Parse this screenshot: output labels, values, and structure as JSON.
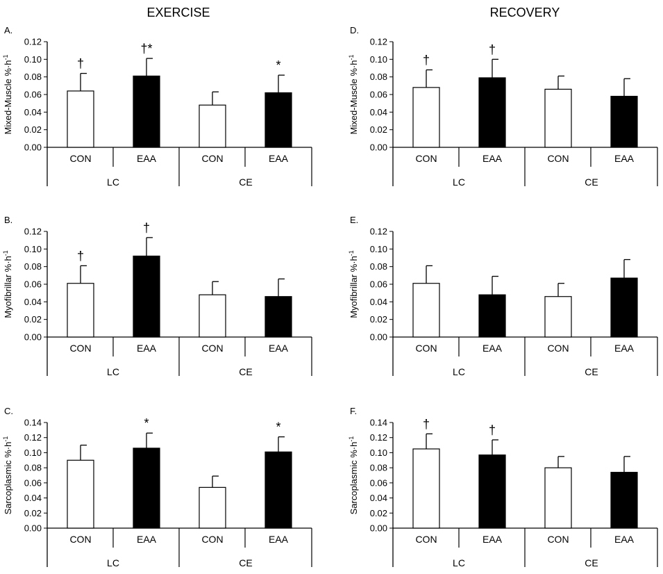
{
  "column_titles": [
    "EXERCISE",
    "RECOVERY"
  ],
  "colors": {
    "con_fill": "#ffffff",
    "eaa_fill": "#000000",
    "stroke": "#000000"
  },
  "chart_data": [
    {
      "panel": "A.",
      "column": "EXERCISE",
      "type": "bar",
      "ylabel": "Mixed-Muscle %·h",
      "ylabel_sup": "-1",
      "ylim": [
        0,
        0.12
      ],
      "yticks": [
        "0.00",
        "0.02",
        "0.04",
        "0.06",
        "0.08",
        "0.10",
        "0.12"
      ],
      "categories": [
        "CON",
        "EAA",
        "CON",
        "EAA"
      ],
      "groups": [
        "LC",
        "CE"
      ],
      "values": [
        0.064,
        0.081,
        0.048,
        0.062
      ],
      "errors": [
        0.02,
        0.02,
        0.015,
        0.02
      ],
      "markers": [
        "†",
        "†*",
        "",
        "*"
      ]
    },
    {
      "panel": "D.",
      "column": "RECOVERY",
      "type": "bar",
      "ylabel": "Mixed-Muscle %·h",
      "ylabel_sup": "-1",
      "ylim": [
        0,
        0.12
      ],
      "yticks": [
        "0.00",
        "0.02",
        "0.04",
        "0.06",
        "0.08",
        "0.10",
        "0.12"
      ],
      "categories": [
        "CON",
        "EAA",
        "CON",
        "EAA"
      ],
      "groups": [
        "LC",
        "CE"
      ],
      "values": [
        0.068,
        0.079,
        0.066,
        0.058
      ],
      "errors": [
        0.02,
        0.021,
        0.015,
        0.02
      ],
      "markers": [
        "†",
        "†",
        "",
        ""
      ]
    },
    {
      "panel": "B.",
      "column": "EXERCISE",
      "type": "bar",
      "ylabel": "Myofibrillar %·h",
      "ylabel_sup": "-1",
      "ylim": [
        0,
        0.12
      ],
      "yticks": [
        "0.00",
        "0.02",
        "0.04",
        "0.06",
        "0.08",
        "0.10",
        "0.12"
      ],
      "categories": [
        "CON",
        "EAA",
        "CON",
        "EAA"
      ],
      "groups": [
        "LC",
        "CE"
      ],
      "values": [
        0.061,
        0.092,
        0.048,
        0.046
      ],
      "errors": [
        0.02,
        0.021,
        0.015,
        0.02
      ],
      "markers": [
        "†",
        "†",
        "",
        ""
      ]
    },
    {
      "panel": "E.",
      "column": "RECOVERY",
      "type": "bar",
      "ylabel": "Myofibrillar %·h",
      "ylabel_sup": "-1",
      "ylim": [
        0,
        0.12
      ],
      "yticks": [
        "0.00",
        "0.02",
        "0.04",
        "0.06",
        "0.08",
        "0.10",
        "0.12"
      ],
      "categories": [
        "CON",
        "EAA",
        "CON",
        "EAA"
      ],
      "groups": [
        "LC",
        "CE"
      ],
      "values": [
        0.061,
        0.048,
        0.046,
        0.067
      ],
      "errors": [
        0.02,
        0.021,
        0.015,
        0.021
      ],
      "markers": [
        "",
        "",
        "",
        ""
      ]
    },
    {
      "panel": "C.",
      "column": "EXERCISE",
      "type": "bar",
      "ylabel": "Sarcoplasmic %·h",
      "ylabel_sup": "-1",
      "ylim": [
        0,
        0.14
      ],
      "yticks": [
        "0.00",
        "0.02",
        "0.04",
        "0.06",
        "0.08",
        "0.10",
        "0.12",
        "0.14"
      ],
      "categories": [
        "CON",
        "EAA",
        "CON",
        "EAA"
      ],
      "groups": [
        "LC",
        "CE"
      ],
      "values": [
        0.09,
        0.106,
        0.054,
        0.101
      ],
      "errors": [
        0.02,
        0.02,
        0.015,
        0.02
      ],
      "markers": [
        "",
        "*",
        "",
        "*"
      ]
    },
    {
      "panel": "F.",
      "column": "RECOVERY",
      "type": "bar",
      "ylabel": "Sarcoplasmic %·h",
      "ylabel_sup": "-1",
      "ylim": [
        0,
        0.14
      ],
      "yticks": [
        "0.00",
        "0.02",
        "0.04",
        "0.06",
        "0.08",
        "0.10",
        "0.12",
        "0.14"
      ],
      "categories": [
        "CON",
        "EAA",
        "CON",
        "EAA"
      ],
      "groups": [
        "LC",
        "CE"
      ],
      "values": [
        0.105,
        0.097,
        0.08,
        0.074
      ],
      "errors": [
        0.02,
        0.02,
        0.015,
        0.021
      ],
      "markers": [
        "†",
        "†",
        "",
        ""
      ]
    }
  ]
}
